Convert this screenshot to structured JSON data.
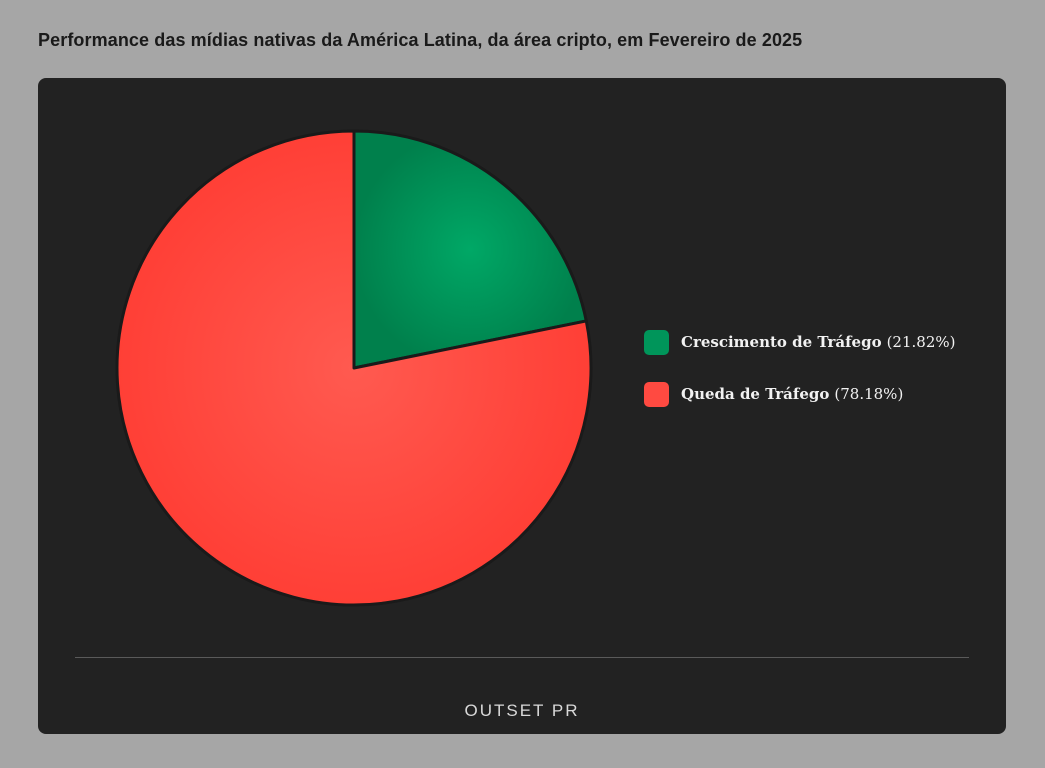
{
  "title": "Performance das mídias nativas da América Latina, da área cripto, em Fevereiro de 2025",
  "chart_data": {
    "type": "pie",
    "categories": [
      "Crescimento de Tráfego",
      "Queda de Tráfego"
    ],
    "values": [
      21.82,
      78.18
    ],
    "colors": [
      "#00955a",
      "#ff4a41"
    ],
    "legend": [
      {
        "label": "Crescimento de Tráfego",
        "pct": "(21.82%)",
        "color": "#00955a"
      },
      {
        "label": "Queda de Tráfego",
        "pct": "(78.18%)",
        "color": "#ff4a41"
      }
    ],
    "legend_position": "right",
    "start_angle": "top, clockwise"
  },
  "footer": {
    "logo_text": "OUTSET PR"
  },
  "colors": {
    "page_background": "#a6a6a6",
    "panel_background": "#222222",
    "slice_border": "#1a1a1a"
  }
}
